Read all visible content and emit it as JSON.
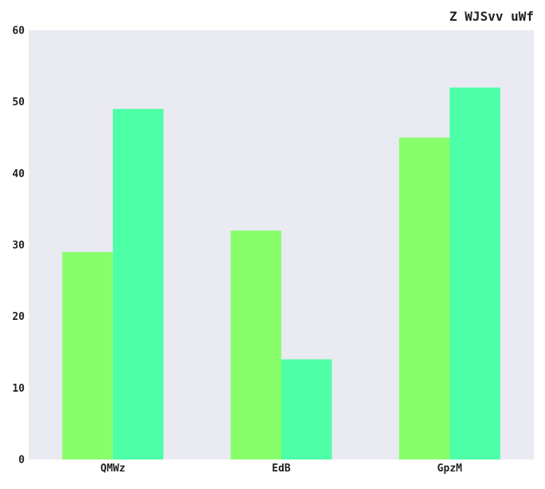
{
  "chart_data": {
    "type": "bar",
    "title": "Z WJSvv  uWf",
    "xlabel": "",
    "ylabel": "",
    "categories": [
      "QMWz",
      "EdB",
      "GpzM"
    ],
    "series": [
      {
        "values": [
          29,
          32,
          45
        ],
        "color": "#88ff6a"
      },
      {
        "values": [
          49,
          14,
          52
        ],
        "color": "#4dffa6"
      }
    ],
    "ylim": [
      0,
      60
    ],
    "yticks": [
      0,
      10,
      20,
      30,
      40,
      50,
      60
    ],
    "grid": false,
    "legend": "none",
    "background": "#eaeaf2"
  }
}
